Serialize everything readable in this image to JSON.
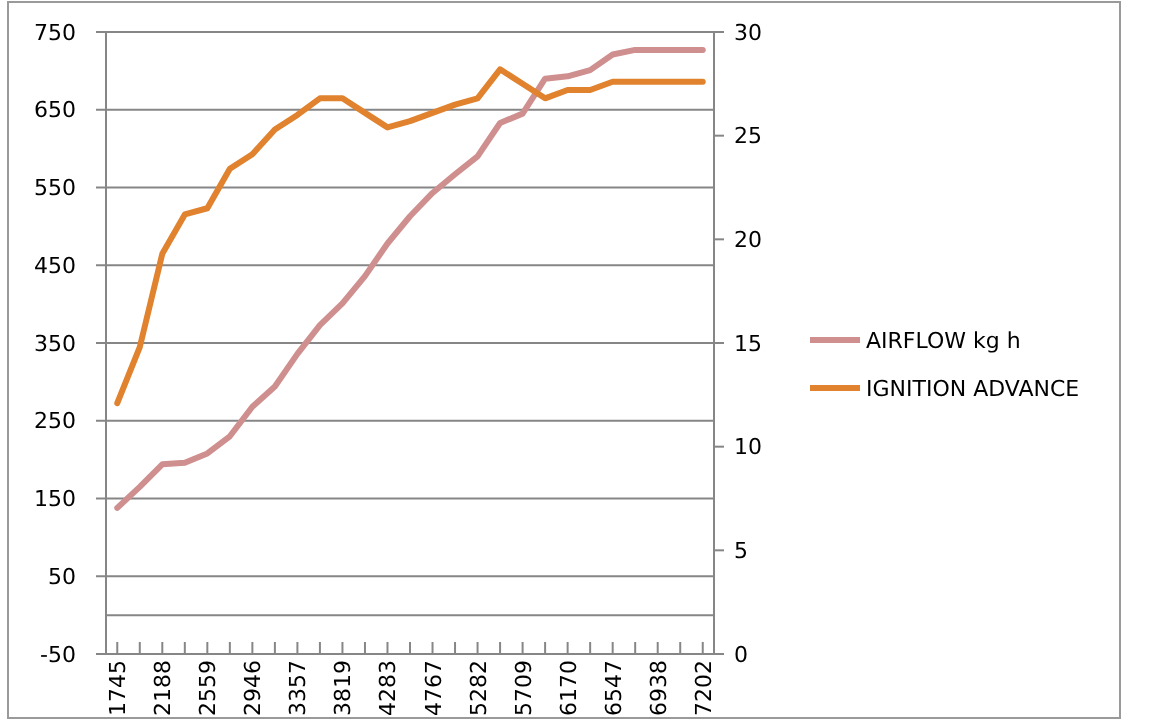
{
  "chart_data": {
    "type": "line",
    "categories": [
      "1745",
      null,
      "2188",
      null,
      "2559",
      null,
      "2946",
      null,
      "3357",
      null,
      "3819",
      null,
      "4283",
      null,
      "4767",
      null,
      "5282",
      null,
      "5709",
      null,
      "6170",
      null,
      "6547",
      null,
      "6938",
      null,
      "7202"
    ],
    "series": [
      {
        "name": "AIRFLOW kg h",
        "color": "#cf8f8f",
        "values": [
          138,
          165,
          194,
          196,
          208,
          230,
          268,
          294,
          336,
          373,
          401,
          436,
          478,
          513,
          543,
          567,
          590,
          633,
          645,
          690,
          693,
          701,
          721,
          727,
          727,
          727,
          727
        ]
      },
      {
        "name": "IGNITION  ADVANCE",
        "color": "#e0822e",
        "axis": "y2",
        "values": [
          12.1,
          14.8,
          19.3,
          21.2,
          21.5,
          23.4,
          24.1,
          25.3,
          26.0,
          26.8,
          26.8,
          26.1,
          25.4,
          25.7,
          26.1,
          26.5,
          26.8,
          28.2,
          27.5,
          26.8,
          27.2,
          27.2,
          27.6,
          27.6,
          27.6,
          27.6,
          27.6
        ]
      }
    ],
    "ylim": [
      -50,
      750
    ],
    "yticks": [
      -50,
      50,
      150,
      250,
      350,
      450,
      550,
      650,
      750
    ],
    "y2lim": [
      0,
      30
    ],
    "y2ticks": [
      0,
      5,
      10,
      15,
      20,
      25,
      30
    ],
    "grid": "y",
    "legend": "right",
    "marker": "none",
    "line_style": "solid"
  }
}
